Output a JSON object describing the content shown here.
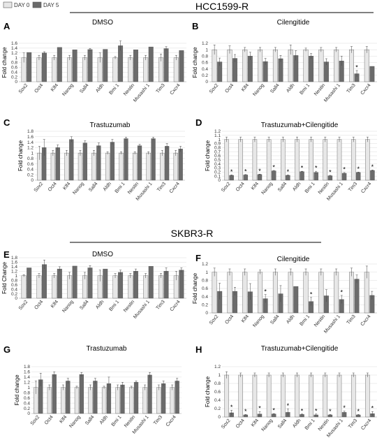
{
  "colors": {
    "day0": "#e7e7e7",
    "day5": "#6b6b6b",
    "outline": "#555555",
    "grid": "#dcdcdc",
    "axis": "#bdbdbd"
  },
  "sections": [
    {
      "title": "HCC1599-R"
    },
    {
      "title": "SKBR3-R"
    }
  ],
  "legend": [
    {
      "label": "DAY 0",
      "color": "#e7e7e7"
    },
    {
      "label": "DAY 5",
      "color": "#6b6b6b"
    }
  ],
  "chart_data": [
    {
      "type": "bar",
      "letter": "A",
      "title": "DMSO",
      "ylabel": "Fold change",
      "ylim": [
        0,
        1.6
      ],
      "yticks": [
        "0",
        "0.2",
        "0.4",
        "0.6",
        "0.8",
        "1",
        "1.2",
        "1.4",
        "1.6"
      ],
      "grid": true,
      "categories": [
        "Sox2",
        "Oct4",
        "Klf4",
        "Nanog",
        "Sall4",
        "Aldh",
        "Bmi 1",
        "Nestin",
        "Musashi 1",
        "Tim3",
        "Cxcr4"
      ],
      "series": [
        {
          "name": "DAY 0",
          "values": [
            1,
            1,
            1,
            1,
            1,
            1,
            1,
            1,
            1,
            1,
            1
          ],
          "errors": [
            0.2,
            0.1,
            0.1,
            0.1,
            0.1,
            0.2,
            0.05,
            0.1,
            0.1,
            0.15,
            0.1
          ]
        },
        {
          "name": "DAY 5",
          "values": [
            1.22,
            1.2,
            1.43,
            1.33,
            1.34,
            1.35,
            1.5,
            1.33,
            1.45,
            1.38,
            1.3
          ],
          "errors": [
            0,
            0.05,
            0,
            0,
            0.05,
            0,
            0.2,
            0,
            0,
            0.08,
            0
          ]
        }
      ],
      "significance": [
        false,
        false,
        false,
        false,
        false,
        false,
        false,
        false,
        false,
        false,
        false
      ]
    },
    {
      "type": "bar",
      "letter": "B",
      "title": "Cilengitide",
      "ylabel": "Fold change",
      "ylim": [
        0,
        1.2
      ],
      "yticks": [
        "0",
        "0.2",
        "0.4",
        "0.6",
        "0.8",
        "1",
        "1.2"
      ],
      "grid": true,
      "categories": [
        "Sox2",
        "Oct4",
        "Klf4",
        "Nanog",
        "Sall4",
        "Aldh",
        "Bmi 1",
        "Nestin",
        "Musashi 1",
        "Tim3",
        "Cxcr4"
      ],
      "series": [
        {
          "name": "DAY 0",
          "values": [
            1,
            1,
            1,
            1,
            1,
            1,
            1,
            1,
            1,
            1,
            1
          ],
          "errors": [
            0.15,
            0.12,
            0.07,
            0.07,
            0.07,
            0.15,
            0.05,
            0.07,
            0.07,
            0.1,
            0.1
          ]
        },
        {
          "name": "DAY 5",
          "values": [
            0.62,
            0.73,
            0.8,
            0.63,
            0.72,
            0.82,
            0.8,
            0.62,
            0.65,
            0.25,
            0.48
          ],
          "errors": [
            0.12,
            0.12,
            0.12,
            0.1,
            0.1,
            0.15,
            0.08,
            0.1,
            0.15,
            0.1,
            0
          ]
        }
      ],
      "significance": [
        false,
        false,
        false,
        false,
        false,
        false,
        false,
        false,
        false,
        true,
        false
      ]
    },
    {
      "type": "bar",
      "letter": "C",
      "title": "Trastuzumab",
      "ylabel": "Fold change",
      "ylim": [
        0,
        1.8
      ],
      "yticks": [
        "0",
        "0.2",
        "0.4",
        "0.6",
        "0.8",
        "1",
        "1.2",
        "1.4",
        "1.6",
        "1.8"
      ],
      "grid": true,
      "categories": [
        "Sox2",
        "Oct4",
        "Klf4",
        "Nanog",
        "Sall4",
        "Aldh",
        "Bmi 1",
        "Nestin",
        "Musashi 1",
        "Tim3",
        "Cxcr4"
      ],
      "series": [
        {
          "name": "DAY 0",
          "values": [
            1,
            1,
            1,
            1,
            1,
            1,
            1,
            1,
            1,
            1,
            1
          ],
          "errors": [
            0.25,
            0.1,
            0.1,
            0.1,
            0.1,
            0.05,
            0.05,
            0.05,
            0.05,
            0.1,
            0.1
          ]
        },
        {
          "name": "DAY 5",
          "values": [
            1.2,
            1.2,
            1.5,
            1.37,
            1.27,
            1.4,
            1.53,
            1.27,
            1.53,
            1.25,
            1.15
          ],
          "errors": [
            0.3,
            0.1,
            0.1,
            0.08,
            0.1,
            0.1,
            0.05,
            0.05,
            0.05,
            0.1,
            0.1
          ]
        }
      ],
      "significance": [
        false,
        false,
        false,
        false,
        false,
        false,
        false,
        false,
        false,
        false,
        false
      ]
    },
    {
      "type": "bar",
      "letter": "D",
      "title": "Trastuzumab+Cilengitide",
      "ylabel": "Fold change",
      "ylim": [
        0,
        1.2
      ],
      "yticks": [
        "0",
        "0.1",
        "0.2",
        "0.3",
        "0.4",
        "0.5",
        "0.6",
        "0.7",
        "0.8",
        "0.9",
        "1",
        "1.1",
        "1.2"
      ],
      "grid": true,
      "categories": [
        "Sox2",
        "Oct4",
        "Klf4",
        "Nanog",
        "Sall4",
        "Aldh",
        "Bmi 1",
        "Nestin",
        "Musashi 1",
        "Tim3",
        "Cxcr4"
      ],
      "series": [
        {
          "name": "DAY 0",
          "values": [
            1,
            1,
            1,
            1,
            1,
            1,
            1,
            1,
            1,
            1,
            1
          ],
          "errors": [
            0.06,
            0.06,
            0.06,
            0.06,
            0.06,
            0.06,
            0.06,
            0.06,
            0.06,
            0.06,
            0.06
          ]
        },
        {
          "name": "DAY 5",
          "values": [
            0.12,
            0.13,
            0.14,
            0.23,
            0.12,
            0.21,
            0.19,
            0.11,
            0.17,
            0.19,
            0.24
          ],
          "errors": [
            0.01,
            0.01,
            0.01,
            0.01,
            0.01,
            0.01,
            0.03,
            0.01,
            0.02,
            0.01,
            0.01
          ]
        }
      ],
      "significance": [
        true,
        true,
        true,
        true,
        true,
        true,
        true,
        true,
        true,
        true,
        true
      ]
    },
    {
      "type": "bar",
      "letter": "E",
      "title": "DMSO",
      "ylabel": "Fold Change",
      "ylim": [
        0,
        1.8
      ],
      "yticks": [
        "0",
        "0.2",
        "0.4",
        "0.6",
        "0.8",
        "1",
        "1.2",
        "1.4",
        "1.6",
        "1.8"
      ],
      "grid": true,
      "categories": [
        "Sox2",
        "Oct4",
        "Klf4",
        "Nanog",
        "Sall4",
        "Aldh",
        "Bmi 1",
        "Nestin",
        "Musashi 1",
        "Tim3",
        "Cxcr4"
      ],
      "series": [
        {
          "name": "DAY 0",
          "values": [
            1,
            1,
            1,
            1,
            1,
            1,
            1,
            1,
            1,
            1,
            1
          ],
          "errors": [
            0.05,
            0.1,
            0.1,
            0.15,
            0.15,
            0.25,
            0.1,
            0.1,
            0.1,
            0.1,
            0.2
          ]
        },
        {
          "name": "DAY 5",
          "values": [
            1.35,
            1.5,
            1.3,
            1.43,
            1.35,
            1.3,
            1.15,
            1.2,
            1.42,
            1.2,
            1.25
          ],
          "errors": [
            0,
            0.2,
            0.1,
            0,
            0.1,
            0,
            0.1,
            0.1,
            0,
            0.15,
            0.1
          ]
        }
      ],
      "significance": [
        false,
        false,
        false,
        false,
        false,
        false,
        false,
        false,
        false,
        false,
        false
      ]
    },
    {
      "type": "bar",
      "letter": "F",
      "title": "Cilengitide",
      "ylabel": "Fold change",
      "ylim": [
        0,
        1.2
      ],
      "yticks": [
        "0",
        "0.2",
        "0.4",
        "0.6",
        "0.8",
        "1",
        "1.2"
      ],
      "grid": true,
      "categories": [
        "Sox2",
        "Oct4",
        "Klf4",
        "Nanog",
        "Sall4",
        "Aldh",
        "Bmi 1",
        "Nestin",
        "Musashi 1",
        "Tim3",
        "Cxcr4"
      ],
      "series": [
        {
          "name": "DAY 0",
          "values": [
            1,
            1,
            1,
            1,
            1,
            1,
            1,
            1,
            1,
            1,
            1
          ],
          "errors": [
            0.1,
            0.08,
            0.08,
            0.05,
            0.08,
            0.08,
            0.08,
            0.08,
            0.08,
            0.1,
            0.15
          ]
        },
        {
          "name": "DAY 5",
          "values": [
            0.53,
            0.53,
            0.52,
            0.35,
            0.47,
            0.65,
            0.28,
            0.42,
            0.33,
            0.83,
            0.43
          ],
          "errors": [
            0.2,
            0.1,
            0.2,
            0.1,
            0.2,
            0,
            0.1,
            0.15,
            0.1,
            0.1,
            0.1
          ]
        }
      ],
      "significance": [
        false,
        false,
        false,
        true,
        false,
        false,
        true,
        false,
        true,
        false,
        false
      ]
    },
    {
      "type": "bar",
      "letter": "G",
      "title": "Trastuzumab",
      "ylabel": "Fold change",
      "ylim": [
        0,
        1.8
      ],
      "yticks": [
        "0",
        "0.2",
        "0.4",
        "0.6",
        "0.8",
        "1",
        "1.2",
        "1.4",
        "1.6",
        "1.8"
      ],
      "grid": true,
      "categories": [
        "Sox2",
        "Oct4",
        "Klf4",
        "Nanog",
        "Sall4",
        "Aldh",
        "Bmi 1",
        "Nestin",
        "Musashi 1",
        "Tim3",
        "Cxcr4"
      ],
      "series": [
        {
          "name": "DAY 0",
          "values": [
            1,
            1,
            1,
            1,
            1,
            1,
            1,
            1,
            1,
            1,
            1
          ],
          "errors": [
            0.25,
            0.1,
            0.1,
            0.05,
            0.1,
            0.05,
            0.1,
            0.05,
            0.1,
            0.1,
            0.1
          ]
        },
        {
          "name": "DAY 5",
          "values": [
            1.3,
            1.5,
            1.25,
            1.5,
            1.25,
            1.15,
            1.1,
            1.2,
            1.48,
            1.15,
            1.25
          ],
          "errors": [
            0.25,
            0.1,
            0.1,
            0.08,
            0.1,
            0.25,
            0.1,
            0.05,
            0.1,
            0.1,
            0.1
          ]
        }
      ],
      "significance": [
        false,
        false,
        false,
        false,
        false,
        false,
        false,
        false,
        false,
        false,
        false
      ]
    },
    {
      "type": "bar",
      "letter": "H",
      "title": "Trastuzumab+Cilengitide",
      "ylabel": "Fold change",
      "ylim": [
        0,
        1.2
      ],
      "yticks": [
        "0",
        "0.2",
        "0.4",
        "0.6",
        "0.8",
        "1",
        "1.2"
      ],
      "grid": true,
      "categories": [
        "Sox2",
        "Oct4",
        "Klf4",
        "Nanog",
        "Sall4",
        "Aldh",
        "Bmi 1",
        "Nestin",
        "Musashi 1",
        "Tim3",
        "Cxcr4"
      ],
      "series": [
        {
          "name": "DAY 0",
          "values": [
            1,
            1,
            1,
            1,
            1,
            1,
            1,
            1,
            1,
            1,
            1
          ],
          "errors": [
            0.08,
            0.05,
            0.05,
            0.05,
            0.05,
            0.05,
            0.05,
            0.05,
            0.05,
            0.05,
            0.05
          ]
        },
        {
          "name": "DAY 5",
          "values": [
            0.1,
            0.05,
            0.07,
            0.07,
            0.11,
            0.06,
            0.05,
            0.05,
            0.11,
            0.05,
            0.08
          ],
          "errors": [
            0.06,
            0.01,
            0.06,
            0.01,
            0.08,
            0.01,
            0.02,
            0.01,
            0.03,
            0.01,
            0.05
          ]
        }
      ],
      "significance": [
        true,
        true,
        true,
        true,
        true,
        true,
        true,
        true,
        true,
        true,
        true
      ]
    }
  ]
}
